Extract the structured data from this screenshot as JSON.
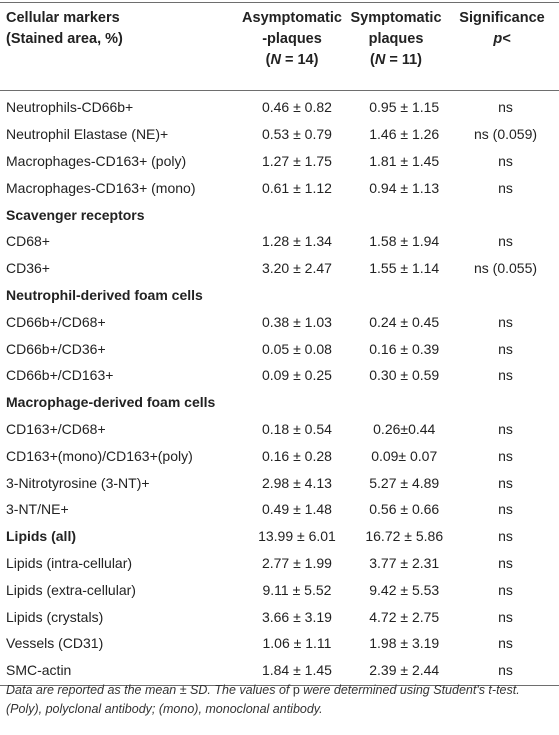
{
  "table": {
    "headers": {
      "col0_line1": "Cellular markers",
      "col0_line2": "(Stained area, %)",
      "col1_line1": "Asymptomatic",
      "col1_line2": "-plaques",
      "col1_line3": "(N = 14)",
      "col2_line1": "Symptomatic",
      "col2_line2": "plaques",
      "col2_line3": "(N = 11)",
      "col3_line1": "Significance",
      "col3_line2": "p<"
    },
    "rows": [
      {
        "label": "Neutrophils-CD66b+",
        "asym": "0.46 ± 0.82",
        "sym": "0.95 ± 1.15",
        "sig": "ns",
        "section": false
      },
      {
        "label": "Neutrophil Elastase (NE)+",
        "asym": "0.53 ± 0.79",
        "sym": "1.46 ± 1.26",
        "sig": "ns (0.059)",
        "section": false
      },
      {
        "label": "Macrophages-CD163+ (poly)",
        "asym": "1.27 ± 1.75",
        "sym": "1.81 ± 1.45",
        "sig": "ns",
        "section": false
      },
      {
        "label": "Macrophages-CD163+ (mono)",
        "asym": "0.61 ± 1.12",
        "sym": "0.94 ± 1.13",
        "sig": "ns",
        "section": false
      },
      {
        "label": "Scavenger receptors",
        "asym": "",
        "sym": "",
        "sig": "",
        "section": true
      },
      {
        "label": "CD68+",
        "asym": "1.28 ± 1.34",
        "sym": "1.58 ± 1.94",
        "sig": "ns",
        "section": false
      },
      {
        "label": "CD36+",
        "asym": "3.20 ± 2.47",
        "sym": "1.55 ± 1.14",
        "sig": "ns (0.055)",
        "section": false
      },
      {
        "label": "Neutrophil-derived foam cells",
        "asym": "",
        "sym": "",
        "sig": "",
        "section": true
      },
      {
        "label": "CD66b+/CD68+",
        "asym": "0.38 ± 1.03",
        "sym": "0.24 ± 0.45",
        "sig": "ns",
        "section": false
      },
      {
        "label": "CD66b+/CD36+",
        "asym": "0.05 ± 0.08",
        "sym": "0.16 ± 0.39",
        "sig": "ns",
        "section": false
      },
      {
        "label": "CD66b+/CD163+",
        "asym": "0.09 ± 0.25",
        "sym": "0.30 ± 0.59",
        "sig": "ns",
        "section": false
      },
      {
        "label": "Macrophage-derived foam cells",
        "asym": "",
        "sym": "",
        "sig": "",
        "section": true
      },
      {
        "label": "CD163+/CD68+",
        "asym": "0.18 ± 0.54",
        "sym": "0.26±0.44",
        "sig": "ns",
        "section": false
      },
      {
        "label": "CD163+(mono)/CD163+(poly)",
        "asym": "0.16 ± 0.28",
        "sym": "0.09± 0.07",
        "sig": "ns",
        "section": false
      },
      {
        "label": "3-Nitrotyrosine (3-NT)+",
        "asym": "2.98 ± 4.13",
        "sym": "5.27 ± 4.89",
        "sig": "ns",
        "section": false
      },
      {
        "label": "3-NT/NE+",
        "asym": "0.49 ± 1.48",
        "sym": "0.56 ± 0.66",
        "sig": "ns",
        "section": false
      },
      {
        "label": "Lipids (all)",
        "asym": "13.99 ± 6.01",
        "sym": "16.72 ± 5.86",
        "sig": "ns",
        "section": true
      },
      {
        "label": "Lipids (intra-cellular)",
        "asym": "2.77 ± 1.99",
        "sym": "3.77 ± 2.31",
        "sig": "ns",
        "section": false
      },
      {
        "label": "Lipids (extra-cellular)",
        "asym": "9.11 ± 5.52",
        "sym": "9.42 ± 5.53",
        "sig": "ns",
        "section": false
      },
      {
        "label": "Lipids (crystals)",
        "asym": "3.66 ± 3.19",
        "sym": "4.72 ± 2.75",
        "sig": "ns",
        "section": false
      },
      {
        "label": "Vessels (CD31)",
        "asym": "1.06 ± 1.11",
        "sym": "1.98 ± 3.19",
        "sig": "ns",
        "section": false
      },
      {
        "label": "SMC-actin",
        "asym": "1.84 ± 1.45",
        "sym": "2.39 ± 2.44",
        "sig": "ns",
        "section": false
      }
    ]
  },
  "footnote": "Data are reported as the mean ± SD. The values of p were determined using Student's t-test. (Poly), polyclonal antibody; (mono), monoclonal antibody."
}
